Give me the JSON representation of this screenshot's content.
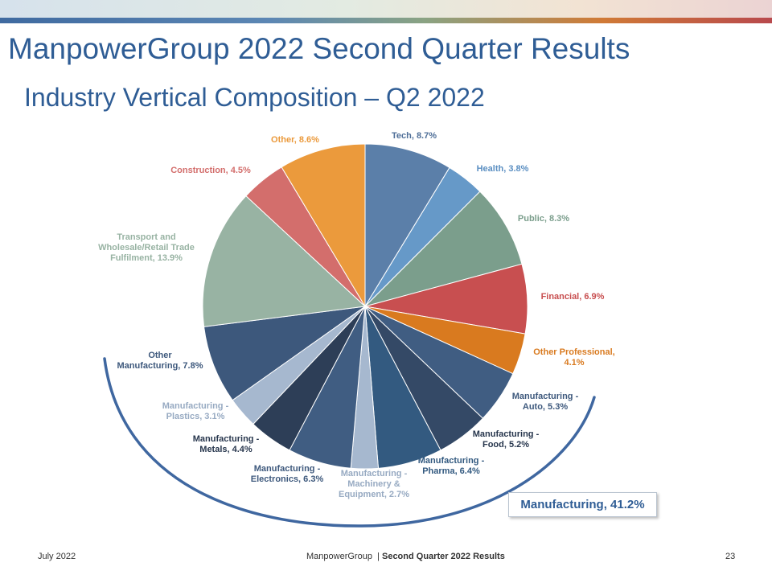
{
  "header": {
    "title": "ManpowerGroup 2022 Second Quarter Results",
    "subtitle": "Industry Vertical Composition – Q2 2022"
  },
  "callout": {
    "label": "Manufacturing, 41.2%"
  },
  "footer": {
    "date": "July 2022",
    "company": "ManpowerGroup",
    "separator": "|",
    "doc_title": "Second Quarter 2022 Results",
    "page_number": "23"
  },
  "chart_data": {
    "type": "pie",
    "title": "",
    "start": "12 o'clock",
    "direction": "clockwise",
    "slices": [
      {
        "label": "Tech, 8.7%",
        "value": 8.7,
        "color": "#5b7fa9"
      },
      {
        "label": "Health, 3.8%",
        "value": 3.8,
        "color": "#6699c8"
      },
      {
        "label": "Public, 8.3%",
        "value": 8.3,
        "color": "#7b9e8c"
      },
      {
        "label": "Financial, 6.9%",
        "value": 6.9,
        "color": "#c84f50"
      },
      {
        "label": "Other Professional, 4.1%",
        "value": 4.1,
        "color": "#d97a1f"
      },
      {
        "label": "Manufacturing - Auto, 5.3%",
        "value": 5.3,
        "color": "#405d82"
      },
      {
        "label": "Manufacturing - Food, 5.2%",
        "value": 5.2,
        "color": "#344966"
      },
      {
        "label": "Manufacturing - Pharma, 6.4%",
        "value": 6.4,
        "color": "#335a80"
      },
      {
        "label": "Manufacturing - Machinery & Equipment, 2.7%",
        "value": 2.7,
        "color": "#a6b8cf"
      },
      {
        "label": "Manufacturing - Electronics, 6.3%",
        "value": 6.3,
        "color": "#405d82"
      },
      {
        "label": "Manufacturing - Metals, 4.4%",
        "value": 4.4,
        "color": "#2d3e57"
      },
      {
        "label": "Manufacturing - Plastics, 3.1%",
        "value": 3.1,
        "color": "#a6b8cf"
      },
      {
        "label": "Other Manufacturing, 7.8%",
        "value": 7.8,
        "color": "#3d587c"
      },
      {
        "label": "Transport and Wholesale/Retail Trade Fulfilment, 13.9%",
        "value": 13.9,
        "color": "#98b3a3"
      },
      {
        "label": "Construction, 4.5%",
        "value": 4.5,
        "color": "#d36e6c"
      },
      {
        "label": "Other, 8.6%",
        "value": 8.6,
        "color": "#eb9a3c"
      }
    ],
    "labels": [
      {
        "lines": [
          "Tech, 8.7%"
        ],
        "color": "#4f6f98"
      },
      {
        "lines": [
          "Health, 3.8%"
        ],
        "color": "#5b8fc2"
      },
      {
        "lines": [
          "Public, 8.3%"
        ],
        "color": "#7b9e8c"
      },
      {
        "lines": [
          "Financial, 6.9%"
        ],
        "color": "#c84f50"
      },
      {
        "lines": [
          "Other Professional,",
          "4.1%"
        ],
        "color": "#d97a1f"
      },
      {
        "lines": [
          "Manufacturing -",
          "Auto, 5.3%"
        ],
        "color": "#3d587c"
      },
      {
        "lines": [
          "Manufacturing -",
          "Food, 5.2%"
        ],
        "color": "#27364d"
      },
      {
        "lines": [
          "Manufacturing -",
          "Pharma, 6.4%"
        ],
        "color": "#335a80"
      },
      {
        "lines": [
          "Manufacturing -",
          "Machinery &",
          "Equipment, 2.7%"
        ],
        "color": "#97aac2"
      },
      {
        "lines": [
          "Manufacturing -",
          "Electronics, 6.3%"
        ],
        "color": "#3d587c"
      },
      {
        "lines": [
          "Manufacturing -",
          "Metals, 4.4%"
        ],
        "color": "#27364d"
      },
      {
        "lines": [
          "Manufacturing -",
          "Plastics, 3.1%"
        ],
        "color": "#97aac2"
      },
      {
        "lines": [
          "Other",
          "Manufacturing, 7.8%"
        ],
        "color": "#3d587c"
      },
      {
        "lines": [
          "Transport and",
          "Wholesale/Retail Trade",
          "Fulfilment, 13.9%"
        ],
        "color": "#98b3a3"
      },
      {
        "lines": [
          "Construction, 4.5%"
        ],
        "color": "#d36e6c"
      },
      {
        "lines": [
          "Other, 8.6%"
        ],
        "color": "#eb9a3c"
      }
    ],
    "group_bracket": {
      "label": "Manufacturing, 41.2%",
      "value": 41.2,
      "color": "#3f67a0",
      "covers": "Manufacturing slices"
    }
  }
}
